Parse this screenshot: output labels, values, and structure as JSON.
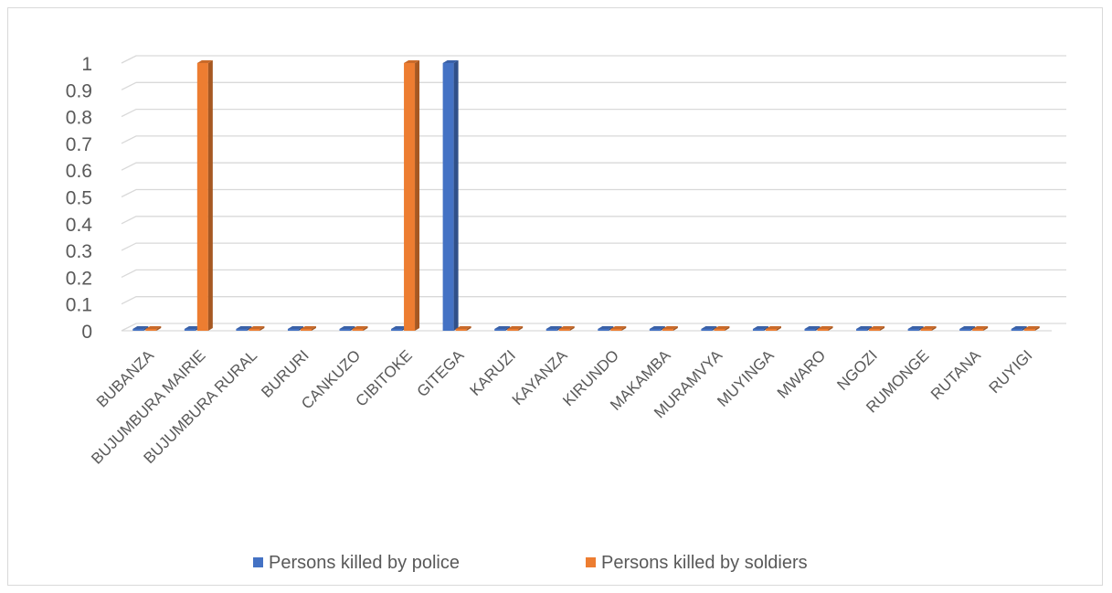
{
  "chart_data": {
    "type": "bar",
    "title": "",
    "xlabel": "",
    "ylabel": "",
    "ylim": [
      0,
      1
    ],
    "yticks": [
      0,
      0.1,
      0.2,
      0.3,
      0.4,
      0.5,
      0.6,
      0.7,
      0.8,
      0.9,
      1
    ],
    "ytick_labels": [
      "0",
      "0.1",
      "0.2",
      "0.3",
      "0.4",
      "0.5",
      "0.6",
      "0.7",
      "0.8",
      "0.9",
      "1"
    ],
    "grid": true,
    "legend_position": "bottom",
    "style": "3d-column",
    "categories": [
      "BUBANZA",
      "BUJUMBURA MAIRIE",
      "BUJUMBURA RURAL",
      "BURURI",
      "CANKUZO",
      "CIBITOKE",
      "GITEGA",
      "KARUZI",
      "KAYANZA",
      "KIRUNDO",
      "MAKAMBA",
      "MURAMVYA",
      "MUYINGA",
      "MWARO",
      "NGOZI",
      "RUMONGE",
      "RUTANA",
      "RUYIGI"
    ],
    "series": [
      {
        "name": "Persons killed by police",
        "color": "#4472c4",
        "values": [
          0,
          0,
          0,
          0,
          0,
          0,
          1,
          0,
          0,
          0,
          0,
          0,
          0,
          0,
          0,
          0,
          0,
          0
        ]
      },
      {
        "name": "Persons killed by soldiers",
        "color": "#ed7d31",
        "values": [
          0,
          1,
          0,
          0,
          0,
          1,
          0,
          0,
          0,
          0,
          0,
          0,
          0,
          0,
          0,
          0,
          0,
          0
        ]
      }
    ]
  }
}
